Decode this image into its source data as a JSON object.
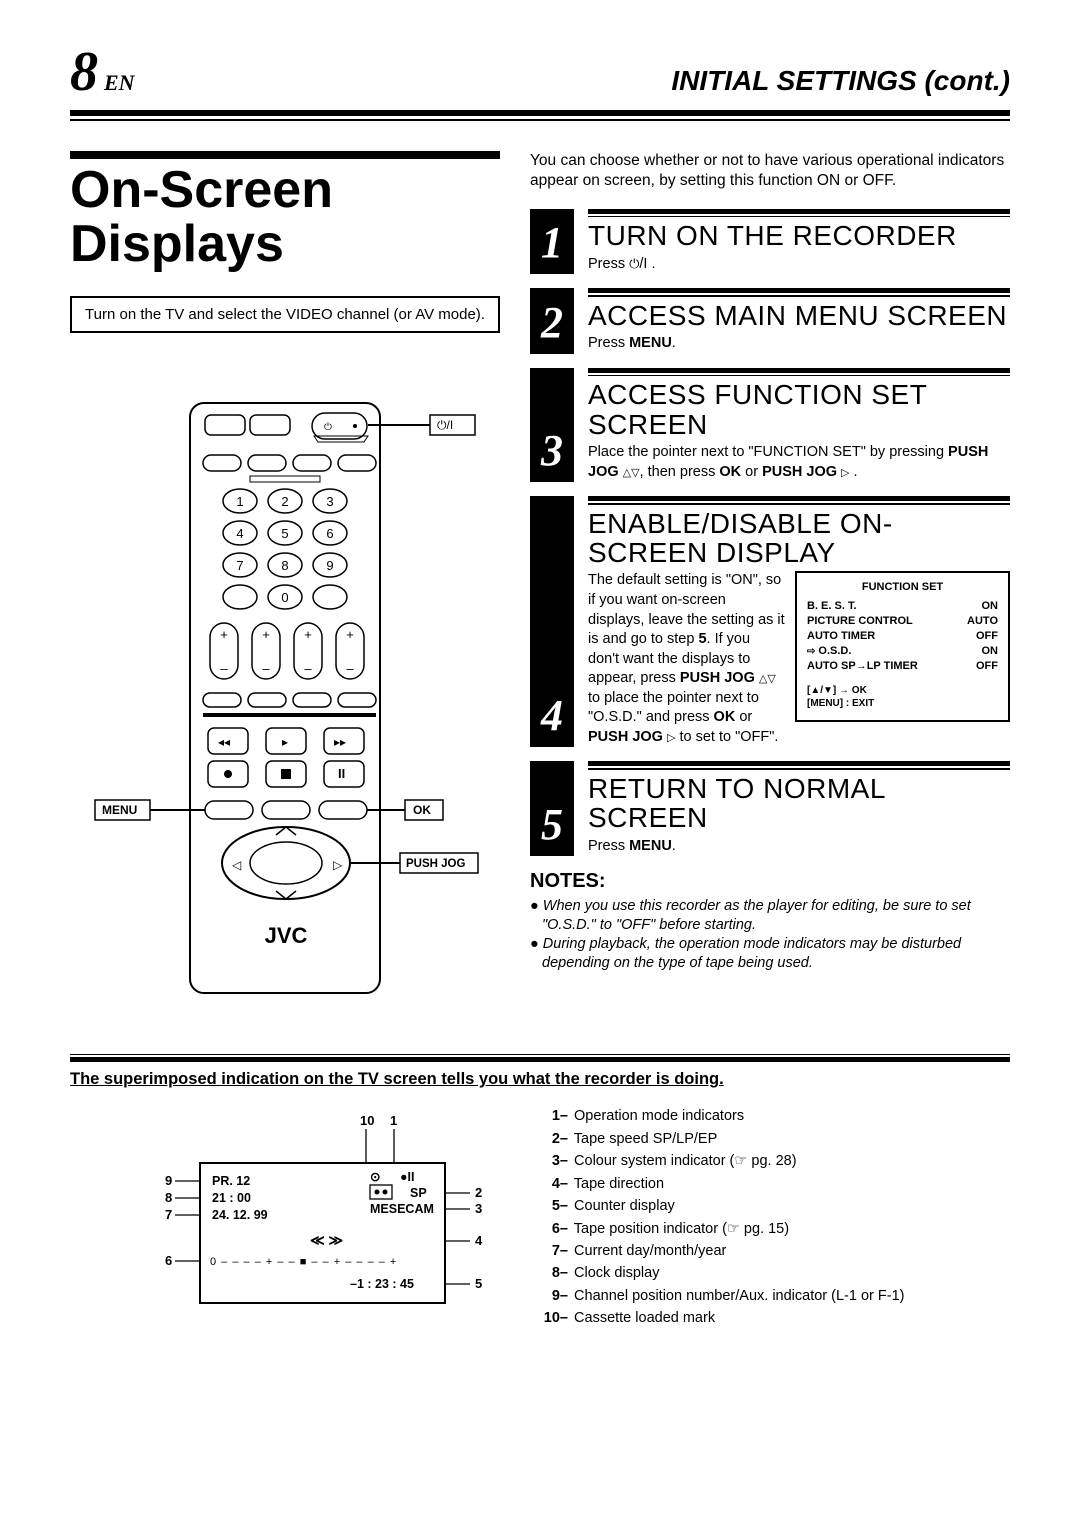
{
  "page_number": "8",
  "page_lang": "EN",
  "section_title": "INITIAL SETTINGS (cont.)",
  "main_heading": "On-Screen Displays",
  "instruction_box": "Turn on the TV and select the VIDEO channel (or AV mode).",
  "intro_text": "You can choose whether or not to have various operational indicators appear on screen, by setting this function ON or OFF.",
  "remote": {
    "brand": "JVC",
    "labels": {
      "menu": "MENU",
      "ok": "OK",
      "push_jog": "PUSH JOG",
      "power": "⏻/I"
    },
    "colors": {
      "body": "#ffffff",
      "stroke": "#000000"
    }
  },
  "steps": [
    {
      "num": "1",
      "title": "TURN ON THE RECORDER",
      "body_html": "Press <span class='power-sym'>⏻</span>/I ."
    },
    {
      "num": "2",
      "title": "ACCESS MAIN MENU SCREEN",
      "body_html": "Press <b>MENU</b>."
    },
    {
      "num": "3",
      "title": "ACCESS FUNCTION SET SCREEN",
      "body_html": "Place the pointer next to \"FUNCTION SET\" by pressing <b>PUSH JOG</b> <span class='tri'>△▽</span>, then press <b>OK</b> or <b>PUSH JOG</b> <span class='tri'>▷</span> ."
    },
    {
      "num": "4",
      "title": "ENABLE/DISABLE ON-SCREEN DISPLAY",
      "body_html": "The default setting is \"ON\", so if you want on-screen displays, leave the setting as it is and go to step <b>5</b>. If you don't want the displays to appear, press <b>PUSH JOG</b> <span class='tri'>△▽</span> to place the pointer next to \"O.S.D.\" and press <b>OK</b> or <b>PUSH JOG</b> <span class='tri'>▷</span> to set to \"OFF\"."
    },
    {
      "num": "5",
      "title": "RETURN TO NORMAL SCREEN",
      "body_html": "Press <b>MENU</b>."
    }
  ],
  "function_set_box": {
    "title": "FUNCTION SET",
    "rows": [
      {
        "label": "B. E. S. T.",
        "value": "ON",
        "pointer": false
      },
      {
        "label": "PICTURE CONTROL",
        "value": "AUTO",
        "pointer": false
      },
      {
        "label": "AUTO TIMER",
        "value": "OFF",
        "pointer": false
      },
      {
        "label": "O.S.D.",
        "value": "ON",
        "pointer": true
      },
      {
        "label": "AUTO SP→LP TIMER",
        "value": "OFF",
        "pointer": false
      }
    ],
    "footer": "[▲/▼] → OK\n[MENU] : EXIT"
  },
  "notes_heading": "NOTES:",
  "notes": [
    "When you use this recorder as the player for editing, be sure to set \"O.S.D.\" to \"OFF\" before starting.",
    "During playback, the operation mode indicators may be disturbed depending on the type of tape being used."
  ],
  "lower_heading": "The superimposed indication on the TV screen tells you what the recorder is doing.",
  "tv_overlay": {
    "channel": "PR. 12",
    "time": "21 : 00",
    "date": "24. 12. 99",
    "speed": "SP",
    "color_system": "MESECAM",
    "tape_direction": "≪ ≫",
    "counter": "–1 : 23 : 45",
    "cassette_mark": "⊙",
    "pause_mark": "●II"
  },
  "indicator_list": [
    "Operation mode indicators",
    "Tape speed SP/LP/EP",
    "Colour system indicator (☞ pg. 28)",
    "Tape direction",
    "Counter display",
    "Tape position indicator (☞ pg. 15)",
    "Current day/month/year",
    "Clock display",
    "Channel position number/Aux. indicator (L-1 or F-1)",
    "Cassette loaded mark"
  ]
}
